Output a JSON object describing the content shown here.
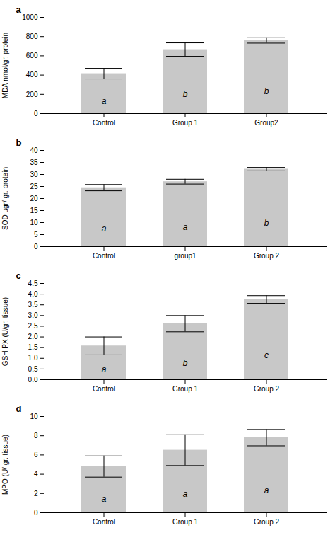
{
  "chart_data": [
    {
      "type": "bar",
      "title": "a",
      "ylabel": "MDA nmol/gr. protein",
      "categories": [
        "Control",
        "Group 1",
        "Group2"
      ],
      "values": [
        415,
        665,
        760
      ],
      "errors": [
        55,
        70,
        28
      ],
      "annotations": [
        "a",
        "b",
        "b"
      ],
      "color": "#c8c8c8",
      "ylim": [
        0,
        1000
      ],
      "yticks": [
        0,
        200,
        400,
        600,
        800,
        1000
      ],
      "grid": false
    },
    {
      "type": "bar",
      "title": "b",
      "ylabel": "SOD ugr/ gr. protein",
      "categories": [
        "Control",
        "group1",
        "Group 2"
      ],
      "values": [
        24.5,
        27.0,
        32.2
      ],
      "errors": [
        1.3,
        1.0,
        0.7
      ],
      "annotations": [
        "a",
        "a",
        "b"
      ],
      "color": "#c8c8c8",
      "ylim": [
        0,
        40
      ],
      "yticks": [
        0,
        5,
        10,
        15,
        20,
        25,
        30,
        35,
        40
      ],
      "grid": false
    },
    {
      "type": "bar",
      "title": "c",
      "ylabel": "GSH PX (U/gr. tissue)",
      "categories": [
        "Control",
        "Group 1",
        "Group 2"
      ],
      "values": [
        1.58,
        2.62,
        3.75
      ],
      "errors": [
        0.42,
        0.38,
        0.18
      ],
      "annotations": [
        "a",
        "b",
        "c"
      ],
      "color": "#c8c8c8",
      "ylim": [
        0,
        4.5
      ],
      "yticks": [
        {
          "value": 0,
          "label": "0.0"
        },
        0.5,
        {
          "value": 1.0,
          "label": "1.0"
        },
        1.5,
        {
          "value": 2.0,
          "label": "2.0"
        },
        2.5,
        {
          "value": 3.0,
          "label": "3.0"
        },
        3.5,
        {
          "value": 4.0,
          "label": "4.0"
        },
        4.5
      ],
      "grid": false
    },
    {
      "type": "bar",
      "title": "d",
      "ylabel": "MPO (U/ gr. tissue)",
      "categories": [
        "Control",
        "Group 1",
        "Group 2"
      ],
      "values": [
        4.8,
        6.5,
        7.8
      ],
      "errors": [
        1.1,
        1.6,
        0.85
      ],
      "annotations": [
        "a",
        "a",
        "a"
      ],
      "color": "#c8c8c8",
      "ylim": [
        0,
        10
      ],
      "yticks": [
        0,
        2,
        4,
        6,
        8,
        10
      ],
      "grid": false
    }
  ]
}
